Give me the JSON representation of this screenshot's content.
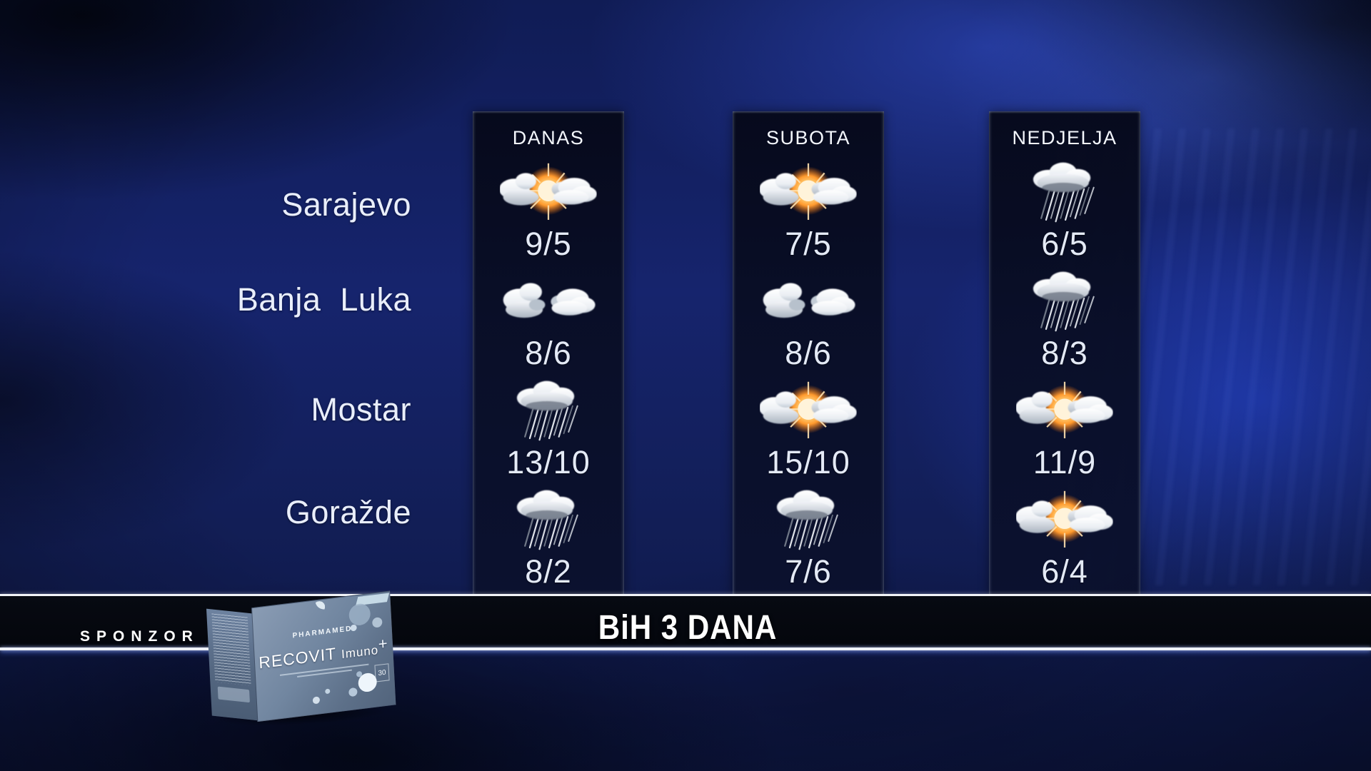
{
  "title": "BiH 3 DANA",
  "sponsor": {
    "label": "SPONZOR",
    "brand": "PHARMAMED",
    "product": "RECOVIT",
    "variant": "Imuno",
    "plus": "+",
    "pack_count": "30"
  },
  "cities": [
    "Sarajevo",
    "Banja Luka",
    "Mostar",
    "Goražde"
  ],
  "columns": [
    {
      "label": "DANAS",
      "cells": [
        {
          "city": "Sarajevo",
          "icon": "partly-sunny",
          "temp": "9/5"
        },
        {
          "city": "Banja Luka",
          "icon": "cloudy",
          "temp": "8/6"
        },
        {
          "city": "Mostar",
          "icon": "rain",
          "temp": "13/10"
        },
        {
          "city": "Goražde",
          "icon": "rain",
          "temp": "8/2"
        }
      ]
    },
    {
      "label": "SUBOTA",
      "cells": [
        {
          "city": "Sarajevo",
          "icon": "partly-sunny",
          "temp": "7/5"
        },
        {
          "city": "Banja Luka",
          "icon": "cloudy",
          "temp": "8/6"
        },
        {
          "city": "Mostar",
          "icon": "partly-sunny",
          "temp": "15/10"
        },
        {
          "city": "Goražde",
          "icon": "rain",
          "temp": "7/6"
        }
      ]
    },
    {
      "label": "NEDJELJA",
      "cells": [
        {
          "city": "Sarajevo",
          "icon": "rain",
          "temp": "6/5"
        },
        {
          "city": "Banja Luka",
          "icon": "rain",
          "temp": "8/3"
        },
        {
          "city": "Mostar",
          "icon": "partly-sunny",
          "temp": "11/9"
        },
        {
          "city": "Goražde",
          "icon": "partly-sunny",
          "temp": "6/4"
        }
      ]
    }
  ],
  "colors": {
    "sky_base": "#16246d",
    "panel": "#0a1028",
    "sun_accent": "#ff9a2e",
    "text": "#e8edf8",
    "bar": "#04060c",
    "line": "#f2f4f8"
  }
}
